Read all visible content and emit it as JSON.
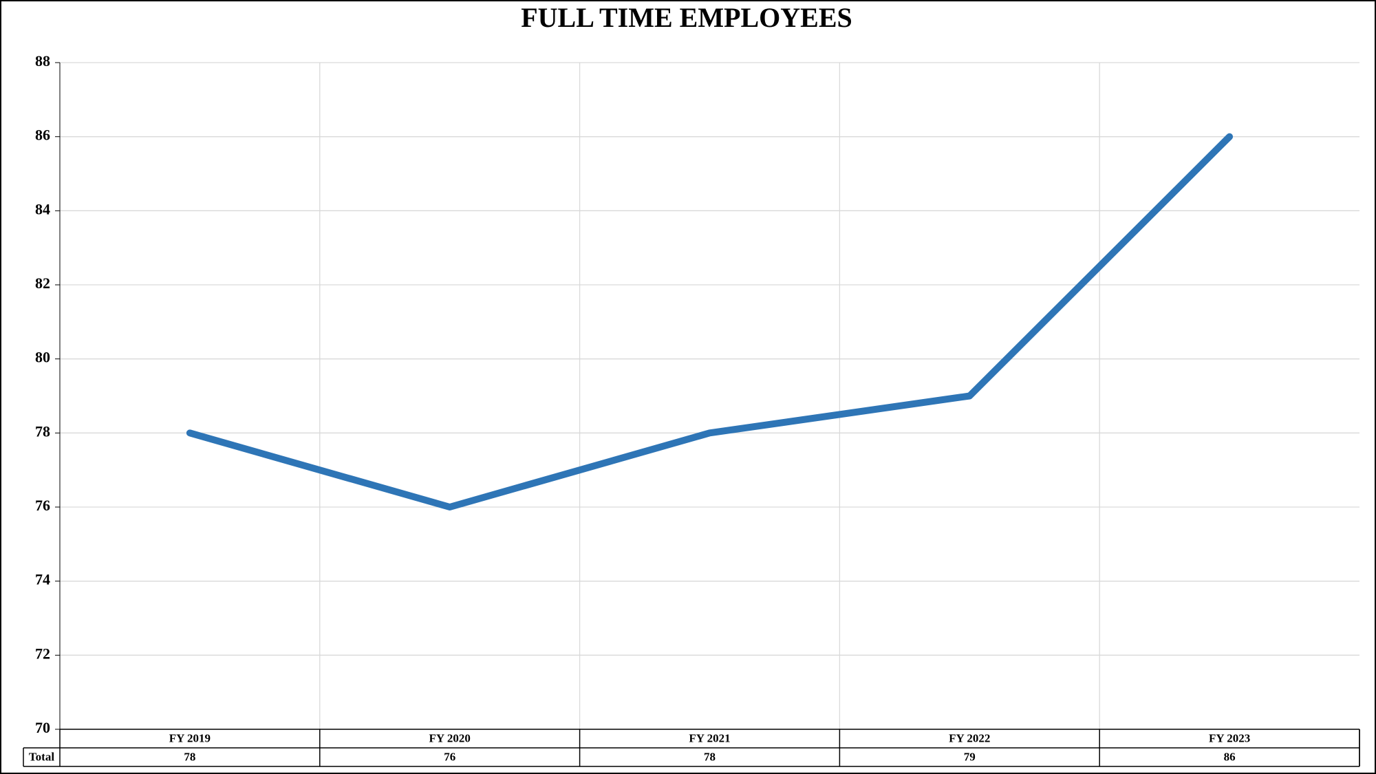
{
  "chart_data": {
    "type": "line",
    "title": "FULL TIME EMPLOYEES",
    "categories": [
      "FY 2019",
      "FY 2020",
      "FY 2021",
      "FY 2022",
      "FY 2023"
    ],
    "series": [
      {
        "name": "Total",
        "color": "#2e75b6",
        "values": [
          78,
          76,
          78,
          79,
          86
        ]
      }
    ],
    "ylim": [
      70,
      88
    ],
    "yticks": [
      70,
      72,
      74,
      76,
      78,
      80,
      82,
      84,
      86,
      88
    ],
    "grid": true
  }
}
